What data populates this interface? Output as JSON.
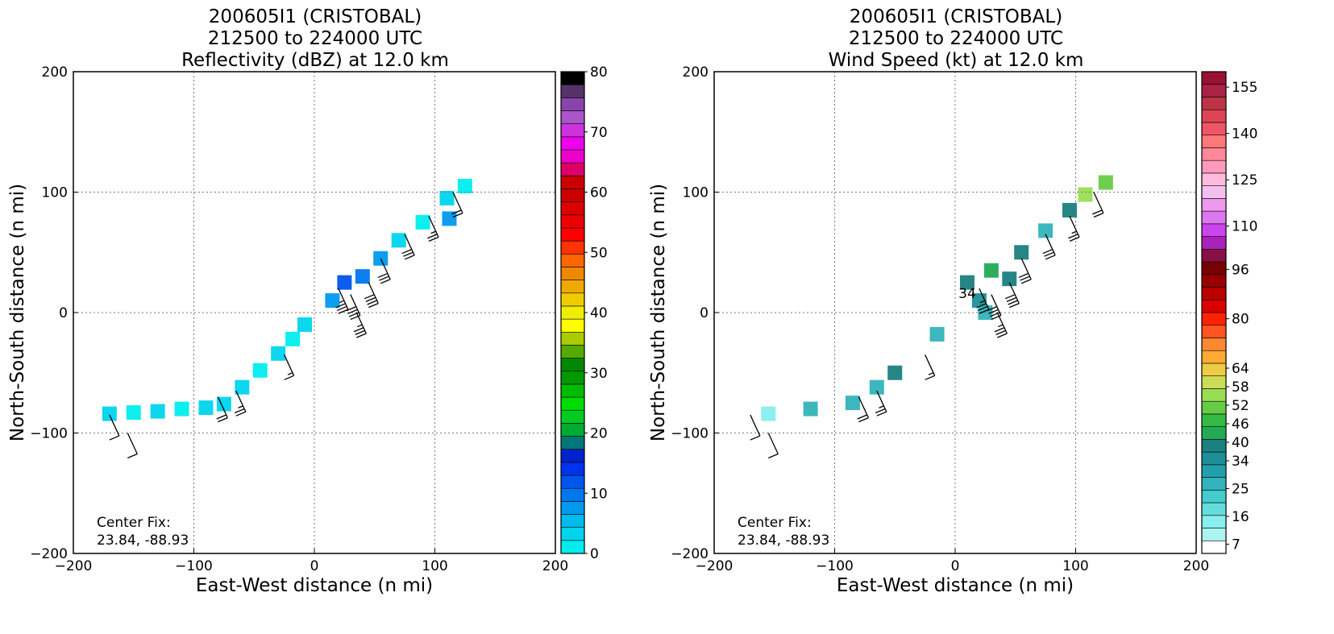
{
  "chart_data": [
    {
      "type": "heatmap",
      "title": [
        "200605I1 (CRISTOBAL)",
        "212500 to 224000 UTC",
        "Reflectivity (dBZ) at 12.0 km"
      ],
      "xlabel": "East-West distance (n mi)",
      "ylabel": "North-South distance (n mi)",
      "xlim": [
        -200,
        200
      ],
      "ylim": [
        -200,
        200
      ],
      "xticks": [
        "−200",
        "−100",
        "0",
        "100",
        "200"
      ],
      "yticks": [
        "−200",
        "−100",
        "0",
        "100",
        "200"
      ],
      "tick_values": [
        -200,
        -100,
        0,
        100,
        200
      ],
      "grid": true,
      "annotation": [
        "Center Fix:",
        "23.84, -88.93"
      ],
      "colorbar": {
        "range": [
          0,
          80
        ],
        "ticks": [
          {
            "value": 0,
            "label": "0"
          },
          {
            "value": 10,
            "label": "10"
          },
          {
            "value": 20,
            "label": "20"
          },
          {
            "value": 30,
            "label": "30"
          },
          {
            "value": 40,
            "label": "40"
          },
          {
            "value": 50,
            "label": "50"
          },
          {
            "value": 60,
            "label": "60"
          },
          {
            "value": 70,
            "label": "70"
          },
          {
            "value": 80,
            "label": "80"
          }
        ],
        "colors": [
          "#00eeee",
          "#00d4ee",
          "#00bbee",
          "#0099ee",
          "#0077ee",
          "#0055ee",
          "#0033ee",
          "#0022cc",
          "#007777",
          "#00aa33",
          "#00cc22",
          "#00dd00",
          "#00bb00",
          "#009900",
          "#008800",
          "#55aa00",
          "#aacc00",
          "#ffff00",
          "#eeee00",
          "#eecc00",
          "#eeaa00",
          "#ee8800",
          "#ff6600",
          "#ff3300",
          "#ff0000",
          "#ee0000",
          "#dd0000",
          "#cc0000",
          "#cc0000",
          "#dd0066",
          "#ee00cc",
          "#ee00ee",
          "#cc33dd",
          "#aa55cc",
          "#8844aa",
          "#553366",
          "#000000"
        ]
      },
      "field": [
        {
          "x": -170,
          "y": -84,
          "v": 3
        },
        {
          "x": -150,
          "y": -83,
          "v": 2
        },
        {
          "x": -130,
          "y": -82,
          "v": 3
        },
        {
          "x": -110,
          "y": -80,
          "v": 2
        },
        {
          "x": -90,
          "y": -79,
          "v": 3
        },
        {
          "x": -75,
          "y": -76,
          "v": 4
        },
        {
          "x": -60,
          "y": -62,
          "v": 3
        },
        {
          "x": -45,
          "y": -48,
          "v": 2
        },
        {
          "x": -30,
          "y": -34,
          "v": 3
        },
        {
          "x": -18,
          "y": -22,
          "v": 2
        },
        {
          "x": -8,
          "y": -10,
          "v": 3
        },
        {
          "x": 15,
          "y": 10,
          "v": 8
        },
        {
          "x": 25,
          "y": 25,
          "v": 12
        },
        {
          "x": 40,
          "y": 30,
          "v": 9
        },
        {
          "x": 55,
          "y": 45,
          "v": 7
        },
        {
          "x": 70,
          "y": 60,
          "v": 3
        },
        {
          "x": 90,
          "y": 75,
          "v": 2
        },
        {
          "x": 110,
          "y": 95,
          "v": 3
        },
        {
          "x": 125,
          "y": 105,
          "v": 2
        },
        {
          "x": 112,
          "y": 78,
          "v": 8
        }
      ],
      "wind_barbs": [
        {
          "x": -170,
          "y": -85,
          "kt": 10
        },
        {
          "x": -155,
          "y": -100,
          "kt": 10
        },
        {
          "x": -80,
          "y": -70,
          "kt": 20
        },
        {
          "x": -65,
          "y": -65,
          "kt": 25
        },
        {
          "x": -25,
          "y": -35,
          "kt": 15
        },
        {
          "x": 20,
          "y": 20,
          "kt": 35
        },
        {
          "x": 30,
          "y": 15,
          "kt": 40
        },
        {
          "x": 45,
          "y": 25,
          "kt": 40
        },
        {
          "x": 35,
          "y": 0,
          "kt": 35
        },
        {
          "x": 55,
          "y": 45,
          "kt": 30
        },
        {
          "x": 75,
          "y": 65,
          "kt": 30
        },
        {
          "x": 95,
          "y": 80,
          "kt": 25
        },
        {
          "x": 115,
          "y": 100,
          "kt": 20
        }
      ]
    },
    {
      "type": "heatmap",
      "title": [
        "200605I1 (CRISTOBAL)",
        "212500 to 224000 UTC",
        "Wind Speed (kt) at 12.0 km"
      ],
      "xlabel": "East-West distance (n mi)",
      "ylabel": "North-South distance (n mi)",
      "xlim": [
        -200,
        200
      ],
      "ylim": [
        -200,
        200
      ],
      "xticks": [
        "−200",
        "−100",
        "0",
        "100",
        "200"
      ],
      "yticks": [
        "−200",
        "−100",
        "0",
        "100",
        "200"
      ],
      "tick_values": [
        -200,
        -100,
        0,
        100,
        200
      ],
      "grid": true,
      "annotation": [
        "Center Fix:",
        "23.84, -88.93"
      ],
      "contour_label": "34",
      "contour_label_pos": {
        "x": 10,
        "y": 12
      },
      "colorbar": {
        "range": [
          4,
          160
        ],
        "ticks": [
          {
            "value": 7,
            "label": "7"
          },
          {
            "value": 16,
            "label": "16"
          },
          {
            "value": 25,
            "label": "25"
          },
          {
            "value": 34,
            "label": "34"
          },
          {
            "value": 40,
            "label": "40"
          },
          {
            "value": 46,
            "label": "46"
          },
          {
            "value": 52,
            "label": "52"
          },
          {
            "value": 58,
            "label": "58"
          },
          {
            "value": 64,
            "label": "64"
          },
          {
            "value": 80,
            "label": "80"
          },
          {
            "value": 96,
            "label": "96"
          },
          {
            "value": 110,
            "label": "110"
          },
          {
            "value": 125,
            "label": "125"
          },
          {
            "value": 140,
            "label": "140"
          },
          {
            "value": 155,
            "label": "155"
          }
        ],
        "colors": [
          "#ffffff",
          "#aaf5f0",
          "#88eeee",
          "#66dddd",
          "#44cccc",
          "#33b3bb",
          "#22a0aa",
          "#1e8f99",
          "#1a8080",
          "#22aa55",
          "#33bb44",
          "#66cc44",
          "#99dd55",
          "#ccdd55",
          "#eecc44",
          "#ffaa33",
          "#ff8833",
          "#ff5522",
          "#ff2200",
          "#dd0000",
          "#bb0000",
          "#990000",
          "#770000",
          "#881144",
          "#aa22bb",
          "#cc44ee",
          "#dd77ee",
          "#ee99ee",
          "#f2c0ee",
          "#ffbbdd",
          "#ff99bb",
          "#ff8899",
          "#ff7777",
          "#ee5566",
          "#dd4455",
          "#bb3344",
          "#aa2244",
          "#991133"
        ]
      },
      "field": [
        {
          "x": -155,
          "y": -84,
          "v": 16
        },
        {
          "x": -120,
          "y": -80,
          "v": 25
        },
        {
          "x": -85,
          "y": -75,
          "v": 28
        },
        {
          "x": -65,
          "y": -62,
          "v": 25
        },
        {
          "x": -50,
          "y": -50,
          "v": 40
        },
        {
          "x": -15,
          "y": -18,
          "v": 25
        },
        {
          "x": 10,
          "y": 25,
          "v": 40
        },
        {
          "x": 20,
          "y": 10,
          "v": 34
        },
        {
          "x": 30,
          "y": 35,
          "v": 43
        },
        {
          "x": 45,
          "y": 28,
          "v": 37
        },
        {
          "x": 55,
          "y": 50,
          "v": 40
        },
        {
          "x": 25,
          "y": 0,
          "v": 25
        },
        {
          "x": 75,
          "y": 68,
          "v": 28
        },
        {
          "x": 95,
          "y": 85,
          "v": 37
        },
        {
          "x": 108,
          "y": 98,
          "v": 55
        },
        {
          "x": 125,
          "y": 108,
          "v": 52
        }
      ],
      "wind_barbs": [
        {
          "x": -170,
          "y": -85,
          "kt": 10
        },
        {
          "x": -155,
          "y": -100,
          "kt": 10
        },
        {
          "x": -80,
          "y": -70,
          "kt": 20
        },
        {
          "x": -65,
          "y": -65,
          "kt": 25
        },
        {
          "x": -25,
          "y": -35,
          "kt": 15
        },
        {
          "x": 20,
          "y": 20,
          "kt": 35
        },
        {
          "x": 30,
          "y": 15,
          "kt": 40
        },
        {
          "x": 45,
          "y": 25,
          "kt": 40
        },
        {
          "x": 35,
          "y": 0,
          "kt": 35
        },
        {
          "x": 55,
          "y": 45,
          "kt": 30
        },
        {
          "x": 75,
          "y": 65,
          "kt": 30
        },
        {
          "x": 95,
          "y": 80,
          "kt": 25
        },
        {
          "x": 115,
          "y": 100,
          "kt": 20
        }
      ]
    }
  ]
}
